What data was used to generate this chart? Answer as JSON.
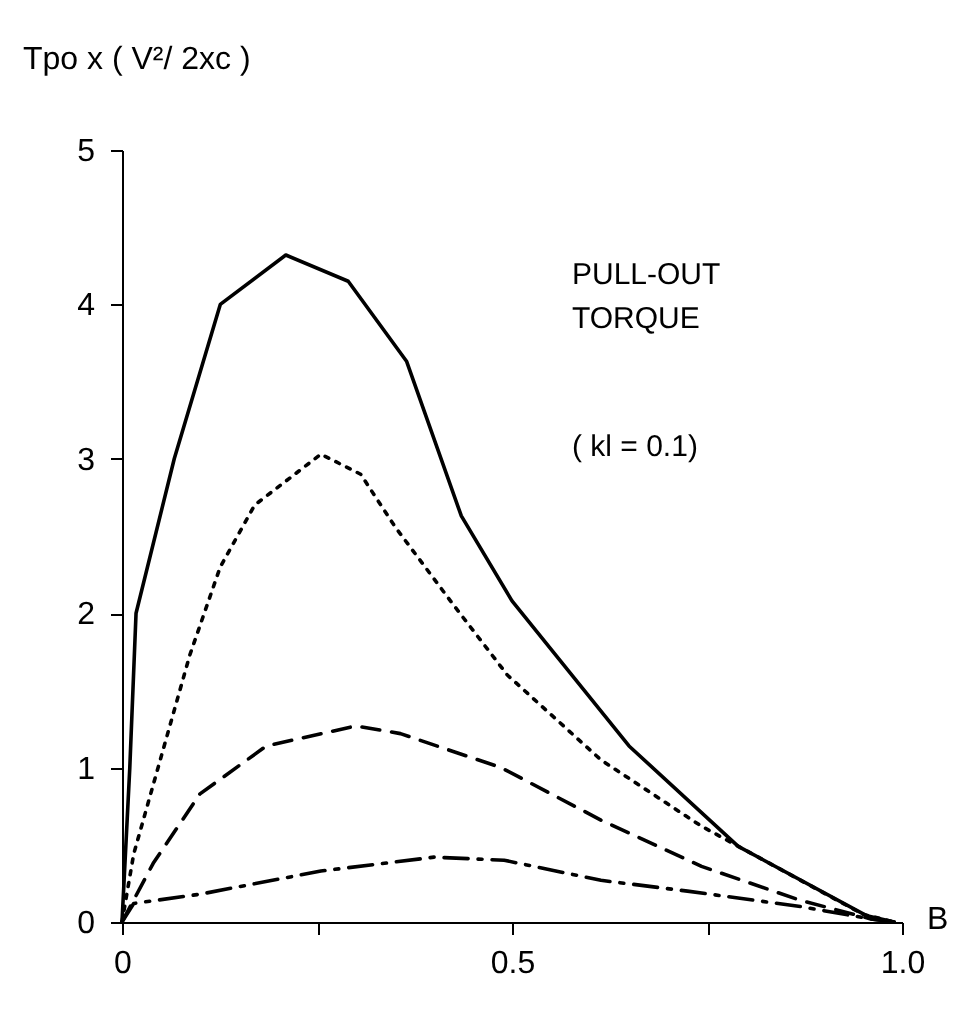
{
  "chart_data": {
    "type": "line",
    "xlabel": "B",
    "ylabel": "Tpo x ( V²/ 2xc )",
    "annotations": [
      "PULL-OUT",
      "TORQUE",
      "( kl = 0.1)"
    ],
    "xlim": [
      0,
      1.0
    ],
    "xticks": [
      0,
      {
        "value": 0.25,
        "label": null
      },
      0.5,
      {
        "value": 0.75,
        "label": null
      },
      {
        "value": 1.0,
        "label": "1.0"
      }
    ],
    "ylim": [
      0,
      5
    ],
    "yticks": [
      0,
      1,
      2,
      3,
      4,
      5
    ],
    "grid": false,
    "marker": "none",
    "series": [
      {
        "color": "#000000",
        "line_style": "solid",
        "x": [
          0,
          0.01,
          0.018,
          0.067,
          0.126,
          0.21,
          0.29,
          0.365,
          0.435,
          0.5,
          0.65,
          0.79,
          0.955,
          0.99
        ],
        "values": [
          0,
          1,
          2,
          3,
          4,
          4.32,
          4.15,
          3.63,
          2.63,
          2.08,
          1.14,
          0.49,
          0.04,
          0
        ]
      },
      {
        "color": "#000000",
        "line_style": "dotted",
        "x": [
          0,
          0.015,
          0.087,
          0.126,
          0.17,
          0.255,
          0.306,
          0.35,
          0.427,
          0.494,
          0.614,
          0.743,
          0.87,
          0.95,
          0.99
        ],
        "values": [
          0,
          0.44,
          1.73,
          2.3,
          2.7,
          3.03,
          2.9,
          2.56,
          2.04,
          1.6,
          1.05,
          0.62,
          0.27,
          0.05,
          0
        ]
      },
      {
        "color": "#000000",
        "line_style": "dashed",
        "x": [
          0,
          0.04,
          0.1,
          0.185,
          0.3,
          0.357,
          0.486,
          0.614,
          0.743,
          0.87,
          0.96,
          0.99
        ],
        "values": [
          0,
          0.38,
          0.83,
          1.14,
          1.27,
          1.22,
          1.0,
          0.66,
          0.36,
          0.14,
          0.02,
          0
        ]
      },
      {
        "color": "#000000",
        "line_style": "dashdot",
        "x": [
          0,
          0.015,
          0.1,
          0.255,
          0.4,
          0.49,
          0.614,
          0.725,
          0.87,
          0.96,
          0.99
        ],
        "values": [
          0,
          0.12,
          0.18,
          0.33,
          0.42,
          0.4,
          0.27,
          0.2,
          0.1,
          0.02,
          0
        ]
      }
    ]
  }
}
